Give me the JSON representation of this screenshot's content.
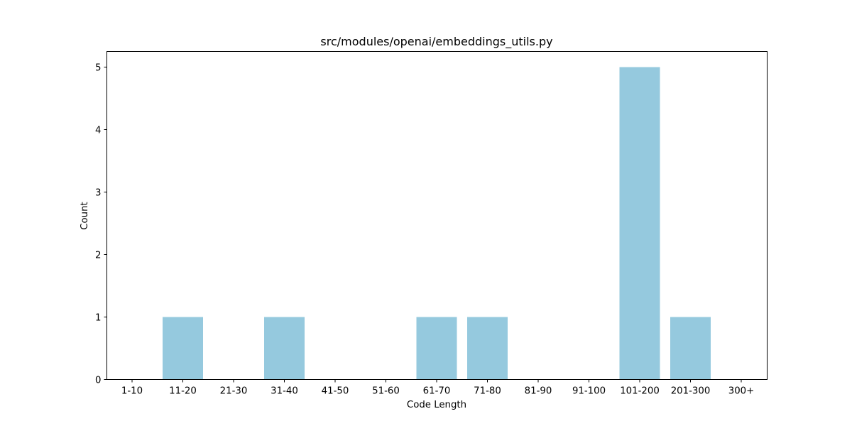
{
  "chart_data": {
    "type": "bar",
    "title": "src/modules/openai/embeddings_utils.py",
    "xlabel": "Code Length",
    "ylabel": "Count",
    "categories": [
      "1-10",
      "11-20",
      "21-30",
      "31-40",
      "41-50",
      "51-60",
      "61-70",
      "71-80",
      "81-90",
      "91-100",
      "101-200",
      "201-300",
      "300+"
    ],
    "values": [
      0,
      1,
      0,
      1,
      0,
      0,
      1,
      1,
      0,
      0,
      5,
      1,
      0
    ],
    "yticks": [
      "0",
      "1",
      "2",
      "3",
      "4",
      "5"
    ],
    "ylim": [
      0,
      5.25
    ],
    "grid": false,
    "bar_color": "#95c9de"
  }
}
